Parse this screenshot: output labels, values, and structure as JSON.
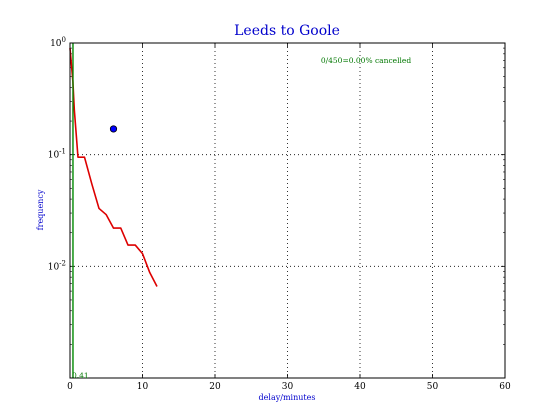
{
  "chart_data": {
    "type": "line",
    "title": "Leeds to Goole",
    "xlabel": "delay/minutes",
    "ylabel": "frequency",
    "x_scale": "linear",
    "y_scale": "log",
    "xlim": [
      0,
      60
    ],
    "ylim": [
      0.001,
      1
    ],
    "x_ticks": [
      0,
      10,
      20,
      30,
      40,
      50,
      60
    ],
    "x_tick_labels": [
      "0",
      "10",
      "20",
      "30",
      "40",
      "50",
      "60"
    ],
    "y_ticks": [
      0.01,
      0.1,
      1
    ],
    "y_tick_labels": [
      "10^-2",
      "10^-1",
      "10^0"
    ],
    "grid": true,
    "annotations": {
      "cancelled": "0/450=0.00% cancelled",
      "marker_value": "0.41"
    },
    "series": [
      {
        "style": "line",
        "color": "#dd0000",
        "x": [
          0,
          0.4,
          0.6,
          0.9,
          1.1,
          2,
          3,
          4,
          5,
          6,
          7,
          8,
          9,
          10,
          11,
          12
        ],
        "y": [
          0.9,
          0.45,
          0.25,
          0.14,
          0.095,
          0.095,
          0.055,
          0.033,
          0.029,
          0.022,
          0.022,
          0.0155,
          0.0155,
          0.013,
          0.0088,
          0.0066
        ]
      },
      {
        "style": "vline",
        "color": "#008800",
        "x": [
          0.41,
          0.41
        ],
        "y": [
          0.001,
          1
        ]
      },
      {
        "style": "point",
        "color": "#0000ff",
        "x": [
          6
        ],
        "y": [
          0.17
        ]
      }
    ]
  }
}
